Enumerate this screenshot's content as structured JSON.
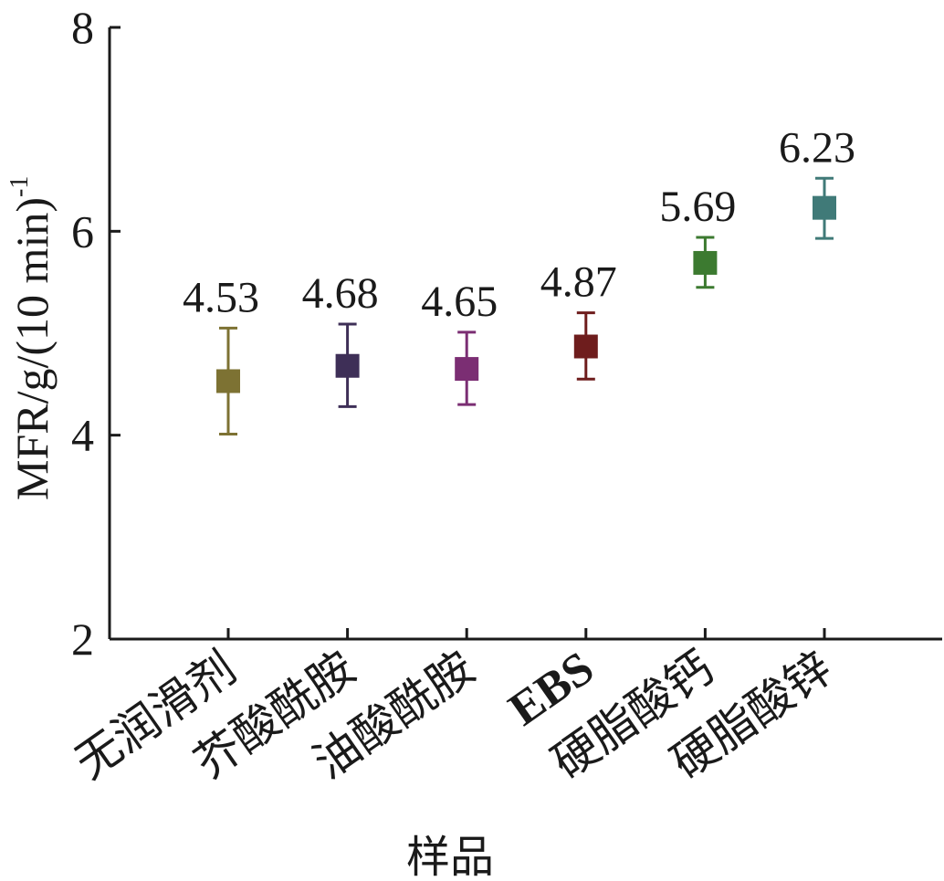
{
  "chart_data": {
    "type": "scatter",
    "title": "",
    "xlabel": "样品",
    "ylabel": "MFR/g/(10 min)",
    "ylabel_superscript": "-1",
    "ylim": [
      2,
      8
    ],
    "yticks": [
      "2",
      "4",
      "6",
      "8"
    ],
    "grid": false,
    "legend": "none",
    "categories": [
      "无润滑剂",
      "芥酸酰胺",
      "油酸酰胺",
      "EBS",
      "硬脂酸钙",
      "硬脂酸锌"
    ],
    "values": [
      4.53,
      4.68,
      4.65,
      4.87,
      5.69,
      6.23
    ],
    "value_labels": [
      "4.53",
      "4.68",
      "4.65",
      "4.87",
      "5.69",
      "6.23"
    ],
    "error_low": [
      4.01,
      4.28,
      4.3,
      4.55,
      5.45,
      5.93
    ],
    "error_high": [
      5.05,
      5.09,
      5.01,
      5.2,
      5.94,
      6.52
    ],
    "colors": [
      "#7d7233",
      "#3e2f57",
      "#7b2e73",
      "#6e1d1d",
      "#3c7a30",
      "#407a78"
    ]
  }
}
